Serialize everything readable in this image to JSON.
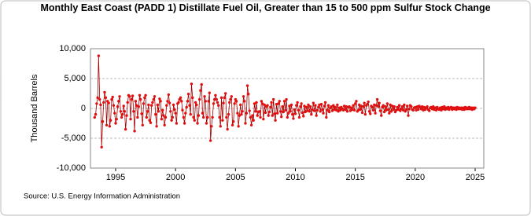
{
  "chart_data": {
    "type": "line",
    "title": "Monthly East Coast (PADD 1) Distillate Fuel Oil, Greater than 15 to 500 ppm Sulfur Stock Change",
    "y_label": "Thousand Barrels",
    "source": "Source: U.S. Energy Information Administration",
    "xlim": [
      1992.9,
      2025.72
    ],
    "xticks": [
      1995,
      2000,
      2005,
      2010,
      2015,
      2020,
      2025
    ],
    "ylim": [
      -10000,
      10000
    ],
    "yticks": [
      {
        "value": -10000,
        "label": "-10,000"
      },
      {
        "value": -5000,
        "label": "-5,000"
      },
      0,
      {
        "value": 5000,
        "label": "5,000"
      },
      {
        "value": 10000,
        "label": "10,000"
      }
    ],
    "grid": true,
    "x": [
      1993.25,
      1993.33,
      1993.42,
      1993.5,
      1993.58,
      1993.67,
      1993.75,
      1993.83,
      1993.92,
      1994,
      1994.08,
      1994.17,
      1994.25,
      1994.33,
      1994.42,
      1994.5,
      1994.58,
      1994.67,
      1994.75,
      1994.83,
      1994.92,
      1995,
      1995.08,
      1995.17,
      1995.25,
      1995.33,
      1995.42,
      1995.5,
      1995.58,
      1995.67,
      1995.75,
      1995.83,
      1995.92,
      1996,
      1996.08,
      1996.17,
      1996.25,
      1996.33,
      1996.42,
      1996.5,
      1996.58,
      1996.67,
      1996.75,
      1996.83,
      1996.92,
      1997,
      1997.08,
      1997.17,
      1997.25,
      1997.33,
      1997.42,
      1997.5,
      1997.58,
      1997.67,
      1997.75,
      1997.83,
      1997.92,
      1998,
      1998.08,
      1998.17,
      1998.25,
      1998.33,
      1998.42,
      1998.5,
      1998.58,
      1998.67,
      1998.75,
      1998.83,
      1998.92,
      1999,
      1999.08,
      1999.17,
      1999.25,
      1999.33,
      1999.42,
      1999.5,
      1999.58,
      1999.67,
      1999.75,
      1999.83,
      1999.92,
      2000,
      2000.08,
      2000.17,
      2000.25,
      2000.33,
      2000.42,
      2000.5,
      2000.58,
      2000.67,
      2000.75,
      2000.83,
      2000.92,
      2001,
      2001.08,
      2001.17,
      2001.25,
      2001.33,
      2001.42,
      2001.5,
      2001.58,
      2001.67,
      2001.75,
      2001.83,
      2001.92,
      2002,
      2002.08,
      2002.17,
      2002.25,
      2002.33,
      2002.42,
      2002.5,
      2002.58,
      2002.67,
      2002.75,
      2002.83,
      2002.92,
      2003,
      2003.08,
      2003.17,
      2003.25,
      2003.33,
      2003.42,
      2003.5,
      2003.58,
      2003.67,
      2003.75,
      2003.83,
      2003.92,
      2004,
      2004.08,
      2004.17,
      2004.25,
      2004.33,
      2004.42,
      2004.5,
      2004.58,
      2004.67,
      2004.75,
      2004.83,
      2004.92,
      2005,
      2005.08,
      2005.17,
      2005.25,
      2005.33,
      2005.42,
      2005.5,
      2005.58,
      2005.67,
      2005.75,
      2005.83,
      2005.92,
      2006,
      2006.08,
      2006.17,
      2006.25,
      2006.33,
      2006.42,
      2006.5,
      2006.58,
      2006.67,
      2006.75,
      2006.83,
      2006.92,
      2007,
      2007.08,
      2007.17,
      2007.25,
      2007.33,
      2007.42,
      2007.5,
      2007.58,
      2007.67,
      2007.75,
      2007.83,
      2007.92,
      2008,
      2008.08,
      2008.17,
      2008.25,
      2008.33,
      2008.42,
      2008.5,
      2008.58,
      2008.67,
      2008.75,
      2008.83,
      2008.92,
      2009,
      2009.08,
      2009.17,
      2009.25,
      2009.33,
      2009.42,
      2009.5,
      2009.58,
      2009.67,
      2009.75,
      2009.83,
      2009.92,
      2010,
      2010.08,
      2010.17,
      2010.25,
      2010.33,
      2010.42,
      2010.5,
      2010.58,
      2010.67,
      2010.75,
      2010.83,
      2010.92,
      2011,
      2011.08,
      2011.17,
      2011.25,
      2011.33,
      2011.42,
      2011.5,
      2011.58,
      2011.67,
      2011.75,
      2011.83,
      2011.92,
      2012,
      2012.08,
      2012.17,
      2012.25,
      2012.33,
      2012.42,
      2012.5,
      2012.58,
      2012.67,
      2012.75,
      2012.83,
      2012.92,
      2013,
      2013.08,
      2013.17,
      2013.25,
      2013.33,
      2013.42,
      2013.5,
      2013.58,
      2013.67,
      2013.75,
      2013.83,
      2013.92,
      2014,
      2014.08,
      2014.17,
      2014.25,
      2014.33,
      2014.42,
      2014.5,
      2014.58,
      2014.67,
      2014.75,
      2014.83,
      2014.92,
      2015,
      2015.08,
      2015.17,
      2015.25,
      2015.33,
      2015.42,
      2015.5,
      2015.58,
      2015.67,
      2015.75,
      2015.83,
      2015.92,
      2016,
      2016.08,
      2016.17,
      2016.25,
      2016.33,
      2016.42,
      2016.5,
      2016.58,
      2016.67,
      2016.75,
      2016.83,
      2016.92,
      2017,
      2017.08,
      2017.17,
      2017.25,
      2017.33,
      2017.42,
      2017.5,
      2017.58,
      2017.67,
      2017.75,
      2017.83,
      2017.92,
      2018,
      2018.08,
      2018.17,
      2018.25,
      2018.33,
      2018.42,
      2018.5,
      2018.58,
      2018.67,
      2018.75,
      2018.83,
      2018.92,
      2019,
      2019.08,
      2019.17,
      2019.25,
      2019.33,
      2019.42,
      2019.5,
      2019.58,
      2019.67,
      2019.75,
      2019.83,
      2019.92,
      2020,
      2020.08,
      2020.17,
      2020.25,
      2020.33,
      2020.42,
      2020.5,
      2020.58,
      2020.67,
      2020.75,
      2020.83,
      2020.92,
      2021,
      2021.08,
      2021.17,
      2021.25,
      2021.33,
      2021.42,
      2021.5,
      2021.58,
      2021.67,
      2021.75,
      2021.83,
      2021.92,
      2022,
      2022.08,
      2022.17,
      2022.25,
      2022.33,
      2022.42,
      2022.5,
      2022.58,
      2022.67,
      2022.75,
      2022.83,
      2022.92,
      2023,
      2023.08,
      2023.17,
      2023.25,
      2023.33,
      2023.42,
      2023.5,
      2023.58,
      2023.67,
      2023.75,
      2023.83,
      2023.92,
      2024,
      2024.08,
      2024.17,
      2024.25,
      2024.33,
      2024.42,
      2024.5,
      2024.58,
      2024.67,
      2024.75,
      2024.83,
      2024.92,
      2025
    ],
    "series": [
      {
        "name": "Stock Change",
        "color": "#a50000",
        "marker_color": "#e01010",
        "values": [
          -1500,
          -1000,
          800,
          1800,
          8800,
          1500,
          600,
          -6500,
          -2200,
          1000,
          2700,
          1800,
          -2800,
          1200,
          900,
          -3000,
          -2000,
          1500,
          1900,
          500,
          -800,
          -2500,
          -1800,
          300,
          1200,
          2000,
          -500,
          -1500,
          -1000,
          400,
          -500,
          -3500,
          -1200,
          1000,
          2200,
          2000,
          -1800,
          1500,
          2100,
          -500,
          -3800,
          1200,
          500,
          -1500,
          300,
          2200,
          1500,
          -900,
          -2800,
          800,
          1800,
          2200,
          -1500,
          -500,
          600,
          -2000,
          -2400,
          500,
          1000,
          1500,
          2000,
          -1000,
          -3000,
          600,
          -500,
          1600,
          1200,
          -1800,
          -300,
          -1200,
          -2800,
          -1500,
          500,
          1200,
          2300,
          900,
          -500,
          -2000,
          -1500,
          600,
          -200,
          -800,
          -2500,
          800,
          1000,
          1500,
          1800,
          1200,
          -300,
          -1500,
          -2500,
          -800,
          200,
          1200,
          2400,
          500,
          -1000,
          4100,
          1800,
          -1500,
          -2000,
          1000,
          600,
          -2500,
          -1200,
          1500,
          3000,
          4000,
          -800,
          -1500,
          2000,
          1200,
          -2500,
          -1500,
          1200,
          2600,
          -5400,
          -3000,
          -1500,
          800,
          1500,
          2200,
          1500,
          1000,
          500,
          -1500,
          -3000,
          1800,
          -2000,
          900,
          1800,
          2500,
          -1500,
          -3500,
          -1000,
          1000,
          1500,
          2000,
          -2800,
          -2200,
          800,
          1500,
          1200,
          -800,
          -3000,
          -1200,
          600,
          -1000,
          -500,
          2000,
          1200,
          -2500,
          -800,
          3800,
          2400,
          -400,
          -1500,
          -2800,
          -1200,
          -2000,
          800,
          -500,
          1000,
          -1200,
          -600,
          -500,
          -1500,
          1200,
          800,
          -1800,
          600,
          -700,
          300,
          500,
          -1200,
          -600,
          200,
          1000,
          -1200,
          1500,
          -900,
          -2000,
          700,
          -800,
          800,
          1200,
          -500,
          -1400,
          300,
          -600,
          1200,
          -300,
          1500,
          -1500,
          -800,
          400,
          -500,
          600,
          -1000,
          -1700,
          -200,
          -900,
          500,
          1000,
          -300,
          -1500,
          300,
          800,
          -700,
          -1300,
          400,
          -600,
          200,
          -400,
          600,
          -500,
          300,
          -1000,
          -200,
          900,
          -400,
          500,
          -1200,
          -300,
          200,
          600,
          -500,
          700,
          -200,
          -800,
          400,
          1000,
          -1500,
          -300,
          500,
          -600,
          100,
          300,
          -400,
          500,
          -200,
          200,
          -300,
          600,
          -500,
          100,
          -300,
          200,
          -100,
          -300,
          400,
          -200,
          300,
          -500,
          200,
          300,
          -400,
          100,
          -200,
          500,
          -300,
          800,
          1200,
          -500,
          -300,
          600,
          -200,
          400,
          -700,
          300,
          900,
          -1000,
          500,
          700,
          1100,
          -500,
          -900,
          400,
          200,
          -300,
          600,
          -800,
          500,
          1500,
          300,
          900,
          -400,
          -1200,
          200,
          500,
          -600,
          300,
          -300,
          800,
          -200,
          -800,
          600,
          -500,
          400,
          -200,
          300,
          -600,
          -300,
          200,
          -200,
          500,
          -400,
          -100,
          300,
          -300,
          600,
          -500,
          -200,
          400,
          -1200,
          -100,
          500,
          300,
          -200,
          -300,
          100,
          200,
          -300,
          300,
          -200,
          400,
          200,
          -100,
          300,
          -300,
          200,
          -200,
          100,
          300,
          -200,
          -400,
          100,
          200,
          -100,
          300,
          -200,
          100,
          -300,
          200,
          -100,
          -200,
          100,
          -300,
          200,
          -100,
          300,
          -200,
          100,
          -100,
          200,
          -200,
          100,
          200,
          -200,
          100,
          -100,
          100,
          -200,
          200,
          -100,
          100,
          -100,
          100,
          -200,
          100,
          -200,
          200,
          -100,
          100,
          -100,
          200,
          -100,
          100,
          -200,
          100,
          -100,
          100
        ]
      }
    ]
  }
}
